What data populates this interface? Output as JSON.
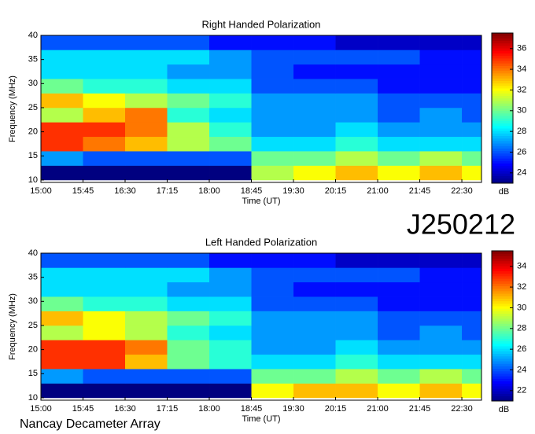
{
  "chart_data": [
    {
      "type": "heatmap",
      "title": "Right Handed Polarization",
      "xlabel": "Time (UT)",
      "ylabel": "Frequency (MHz)",
      "colormap": "jet",
      "colorbar_label": "dB",
      "xbins": [
        15,
        15.75,
        16.5,
        17.25,
        18,
        18.75,
        19.5,
        20.25,
        21,
        21.75,
        22.5,
        22.85
      ],
      "ybins": [
        10,
        13,
        16,
        19,
        22,
        25,
        28,
        31,
        34,
        37,
        40
      ],
      "values": [
        [
          23,
          23,
          23,
          23,
          23,
          31,
          32,
          33,
          32,
          33,
          32
        ],
        [
          27,
          26,
          26,
          26,
          26,
          30,
          30,
          31,
          30,
          31,
          30
        ],
        [
          35,
          34,
          33,
          31,
          30,
          28,
          28,
          29,
          28,
          28,
          28
        ],
        [
          35,
          35,
          34,
          31,
          29,
          27,
          27,
          28,
          27,
          27,
          27
        ],
        [
          31,
          33,
          34,
          29,
          28,
          27,
          27,
          27,
          26,
          27,
          26
        ],
        [
          33,
          32,
          31,
          30,
          29,
          27,
          27,
          27,
          26,
          26,
          26
        ],
        [
          30,
          29,
          29,
          28,
          28,
          26,
          26,
          26,
          25,
          25,
          25
        ],
        [
          28,
          28,
          28,
          27,
          27,
          26,
          25,
          25,
          25,
          25,
          25
        ],
        [
          28,
          28,
          28,
          28,
          27,
          26,
          26,
          26,
          26,
          25,
          25
        ],
        [
          26,
          26,
          26,
          26,
          25,
          25,
          25,
          24,
          24,
          24,
          24
        ]
      ],
      "xlim": [
        15,
        22.85
      ],
      "xticks": [
        {
          "value": 15,
          "label": "15:00"
        },
        {
          "value": 15.75,
          "label": "15:45"
        },
        {
          "value": 16.5,
          "label": "16:30"
        },
        {
          "value": 17.25,
          "label": "17:15"
        },
        {
          "value": 18,
          "label": "18:00"
        },
        {
          "value": 18.75,
          "label": "18:45"
        },
        {
          "value": 19.5,
          "label": "19:30"
        },
        {
          "value": 20.25,
          "label": "20:15"
        },
        {
          "value": 21,
          "label": "21:00"
        },
        {
          "value": 21.75,
          "label": "21:45"
        },
        {
          "value": 22.5,
          "label": "22:30"
        }
      ],
      "ylim": [
        9.5,
        40
      ],
      "yticks": [
        10,
        15,
        20,
        25,
        30,
        35,
        40
      ],
      "clim": [
        23,
        37.5
      ],
      "cticks": [
        24,
        26,
        28,
        30,
        32,
        34,
        36
      ]
    },
    {
      "type": "heatmap",
      "title": "Left Handed Polarization",
      "xlabel": "Time (UT)",
      "ylabel": "Frequency (MHz)",
      "colormap": "jet",
      "colorbar_label": "dB",
      "xbins": [
        15,
        15.75,
        16.5,
        17.25,
        18,
        18.75,
        19.5,
        20.25,
        21,
        21.75,
        22.5,
        22.85
      ],
      "ybins": [
        10,
        13,
        16,
        19,
        22,
        25,
        28,
        31,
        34,
        37,
        40
      ],
      "values": [
        [
          21,
          21,
          21,
          21,
          21,
          30,
          31,
          31,
          30,
          31,
          30
        ],
        [
          25,
          24,
          24,
          24,
          24,
          28,
          28,
          29,
          28,
          29,
          28
        ],
        [
          33,
          33,
          31,
          28,
          27,
          26,
          26,
          27,
          26,
          26,
          26
        ],
        [
          33,
          33,
          32,
          28,
          27,
          25,
          25,
          26,
          25,
          25,
          25
        ],
        [
          29,
          30,
          29,
          27,
          26,
          25,
          25,
          25,
          24,
          25,
          24
        ],
        [
          31,
          30,
          29,
          28,
          27,
          25,
          25,
          25,
          24,
          24,
          24
        ],
        [
          28,
          27,
          27,
          26,
          26,
          24,
          24,
          24,
          23,
          23,
          23
        ],
        [
          26,
          26,
          26,
          25,
          25,
          24,
          23,
          23,
          23,
          23,
          23
        ],
        [
          26,
          26,
          26,
          26,
          25,
          24,
          24,
          24,
          24,
          23,
          23
        ],
        [
          24,
          24,
          24,
          24,
          23,
          23,
          23,
          22,
          22,
          22,
          22
        ]
      ],
      "xlim": [
        15,
        22.85
      ],
      "xticks": [
        {
          "value": 15,
          "label": "15:00"
        },
        {
          "value": 15.75,
          "label": "15:45"
        },
        {
          "value": 16.5,
          "label": "16:30"
        },
        {
          "value": 17.25,
          "label": "17:15"
        },
        {
          "value": 18,
          "label": "18:00"
        },
        {
          "value": 18.75,
          "label": "18:45"
        },
        {
          "value": 19.5,
          "label": "19:30"
        },
        {
          "value": 20.25,
          "label": "20:15"
        },
        {
          "value": 21,
          "label": "21:00"
        },
        {
          "value": 21.75,
          "label": "21:45"
        },
        {
          "value": 22.5,
          "label": "22:30"
        }
      ],
      "ylim": [
        9.5,
        40
      ],
      "yticks": [
        10,
        15,
        20,
        25,
        30,
        35,
        40
      ],
      "clim": [
        21,
        35.5
      ],
      "cticks": [
        22,
        24,
        26,
        28,
        30,
        32,
        34
      ]
    }
  ],
  "label": "J250212",
  "footer": "Nancay Decameter Array"
}
